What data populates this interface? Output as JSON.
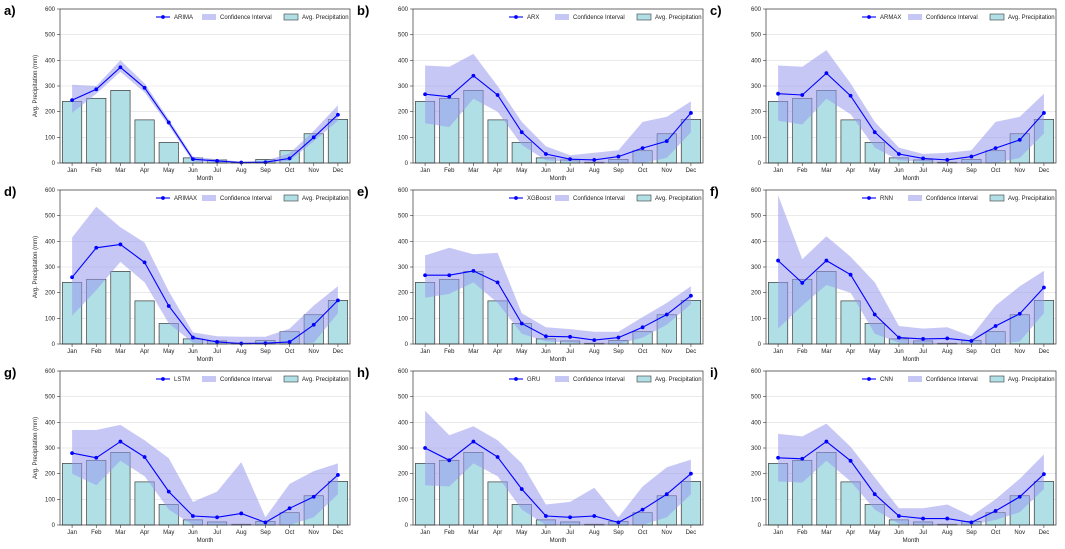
{
  "figure": {
    "bar_color": "#b0e0e6",
    "bar_edge": "#3a3a3a",
    "line_color": "#0000ff",
    "ci_color": "#9999ee"
  },
  "chart_data": [
    {
      "type": "bar+line",
      "letter": "a)",
      "model": "ARIMA",
      "categories": [
        "Jan",
        "Feb",
        "Mar",
        "Apr",
        "May",
        "Jun",
        "Jul",
        "Aug",
        "Sep",
        "Oct",
        "Nov",
        "Dec"
      ],
      "precip": [
        240,
        252,
        283,
        168,
        80,
        20,
        12,
        3,
        14,
        48,
        114,
        170
      ],
      "pred": [
        245,
        287,
        373,
        293,
        158,
        15,
        8,
        2,
        3,
        18,
        100,
        188
      ],
      "ci_low": [
        195,
        270,
        355,
        275,
        145,
        5,
        2,
        0,
        0,
        8,
        85,
        165
      ],
      "ci_high": [
        305,
        300,
        400,
        310,
        170,
        25,
        15,
        5,
        8,
        38,
        125,
        225
      ],
      "ylim": [
        0,
        600
      ],
      "yticks": [
        0,
        100,
        200,
        300,
        400,
        500,
        600
      ],
      "xlabel": "Month",
      "ylabel": "Avg. Precipitation (mm)",
      "legend": [
        "ARIMA",
        "Confidence Interval",
        "Avg. Precipitation"
      ]
    },
    {
      "type": "bar+line",
      "letter": "b)",
      "model": "ARX",
      "categories": [
        "Jan",
        "Feb",
        "Mar",
        "Apr",
        "May",
        "Jun",
        "Jul",
        "Aug",
        "Sep",
        "Oct",
        "Nov",
        "Dec"
      ],
      "precip": [
        240,
        252,
        283,
        168,
        80,
        20,
        12,
        3,
        14,
        48,
        114,
        170
      ],
      "pred": [
        268,
        258,
        340,
        265,
        120,
        35,
        15,
        12,
        25,
        58,
        85,
        195
      ],
      "ci_low": [
        155,
        140,
        250,
        200,
        70,
        10,
        5,
        0,
        0,
        0,
        20,
        120
      ],
      "ci_high": [
        380,
        375,
        425,
        300,
        160,
        65,
        30,
        40,
        50,
        160,
        180,
        240
      ],
      "ylim": [
        0,
        600
      ],
      "yticks": [
        0,
        100,
        200,
        300,
        400,
        500,
        600
      ],
      "xlabel": "Month",
      "ylabel": "",
      "legend": [
        "ARX",
        "Confidence Interval",
        "Avg. Precipitation"
      ]
    },
    {
      "type": "bar+line",
      "letter": "c)",
      "model": "ARMAX",
      "categories": [
        "Jan",
        "Feb",
        "Mar",
        "Apr",
        "May",
        "Jun",
        "Jul",
        "Aug",
        "Sep",
        "Oct",
        "Nov",
        "Dec"
      ],
      "precip": [
        240,
        252,
        283,
        168,
        80,
        20,
        12,
        3,
        14,
        48,
        114,
        170
      ],
      "pred": [
        270,
        265,
        350,
        262,
        120,
        35,
        18,
        12,
        25,
        58,
        90,
        195
      ],
      "ci_low": [
        165,
        150,
        250,
        190,
        60,
        10,
        5,
        0,
        0,
        0,
        20,
        115
      ],
      "ci_high": [
        380,
        375,
        440,
        310,
        160,
        60,
        35,
        40,
        50,
        160,
        180,
        270
      ],
      "ylim": [
        0,
        600
      ],
      "yticks": [
        0,
        100,
        200,
        300,
        400,
        500,
        600
      ],
      "xlabel": "Month",
      "ylabel": "",
      "legend": [
        "ARMAX",
        "Confidence Interval",
        "Avg. Precipitation"
      ]
    },
    {
      "type": "bar+line",
      "letter": "d)",
      "model": "ARIMAX",
      "categories": [
        "Jan",
        "Feb",
        "Mar",
        "Apr",
        "May",
        "Jun",
        "Jul",
        "Aug",
        "Sep",
        "Oct",
        "Nov",
        "Dec"
      ],
      "precip": [
        240,
        252,
        283,
        168,
        80,
        20,
        12,
        3,
        14,
        48,
        114,
        170
      ],
      "pred": [
        260,
        375,
        388,
        318,
        148,
        25,
        8,
        2,
        3,
        8,
        75,
        170
      ],
      "ci_low": [
        110,
        210,
        320,
        240,
        80,
        5,
        0,
        0,
        0,
        0,
        5,
        120
      ],
      "ci_high": [
        415,
        535,
        455,
        395,
        205,
        45,
        30,
        28,
        28,
        60,
        150,
        225
      ],
      "ylim": [
        0,
        600
      ],
      "yticks": [
        0,
        100,
        200,
        300,
        400,
        500,
        600
      ],
      "xlabel": "Month",
      "ylabel": "Avg. Precipitation (mm)",
      "legend": [
        "ARIMAX",
        "Confidence Interval",
        "Avg. Precipitation"
      ]
    },
    {
      "type": "bar+line",
      "letter": "e)",
      "model": "XGBoost",
      "categories": [
        "Jan",
        "Feb",
        "Mar",
        "Apr",
        "May",
        "Jun",
        "Jul",
        "Aug",
        "Sep",
        "Oct",
        "Nov",
        "Dec"
      ],
      "precip": [
        240,
        252,
        283,
        168,
        80,
        20,
        12,
        3,
        14,
        48,
        114,
        170
      ],
      "pred": [
        268,
        268,
        285,
        240,
        80,
        30,
        28,
        15,
        25,
        65,
        115,
        188
      ],
      "ci_low": [
        180,
        195,
        240,
        160,
        40,
        10,
        5,
        0,
        0,
        25,
        75,
        155
      ],
      "ci_high": [
        345,
        375,
        350,
        355,
        120,
        65,
        58,
        48,
        48,
        105,
        160,
        225
      ],
      "ylim": [
        0,
        600
      ],
      "yticks": [
        0,
        100,
        200,
        300,
        400,
        500,
        600
      ],
      "xlabel": "Month",
      "ylabel": "",
      "legend": [
        "XGBoost",
        "Confidence Interval",
        "Avg. Precipitation"
      ]
    },
    {
      "type": "bar+line",
      "letter": "f)",
      "model": "RNN",
      "categories": [
        "Jan",
        "Feb",
        "Mar",
        "Apr",
        "May",
        "Jun",
        "Jul",
        "Aug",
        "Sep",
        "Oct",
        "Nov",
        "Dec"
      ],
      "precip": [
        240,
        252,
        283,
        168,
        80,
        20,
        12,
        3,
        14,
        48,
        114,
        170
      ],
      "pred": [
        325,
        238,
        325,
        270,
        115,
        25,
        20,
        22,
        12,
        70,
        118,
        220
      ],
      "ci_low": [
        60,
        150,
        230,
        200,
        40,
        5,
        0,
        0,
        0,
        0,
        10,
        120
      ],
      "ci_high": [
        580,
        330,
        420,
        340,
        240,
        70,
        60,
        65,
        30,
        150,
        225,
        285
      ],
      "ylim": [
        0,
        600
      ],
      "yticks": [
        0,
        100,
        200,
        300,
        400,
        500,
        600
      ],
      "xlabel": "Month",
      "ylabel": "",
      "legend": [
        "RNN",
        "Confidence Interval",
        "Avg. Precipitation"
      ]
    },
    {
      "type": "bar+line",
      "letter": "g)",
      "model": "LSTM",
      "categories": [
        "Jan",
        "Feb",
        "Mar",
        "Apr",
        "May",
        "Jun",
        "Jul",
        "Aug",
        "Sep",
        "Oct",
        "Nov",
        "Dec"
      ],
      "precip": [
        240,
        252,
        283,
        168,
        80,
        20,
        12,
        3,
        14,
        48,
        114,
        170
      ],
      "pred": [
        280,
        262,
        325,
        265,
        130,
        35,
        30,
        45,
        10,
        65,
        110,
        195
      ],
      "ci_low": [
        200,
        155,
        250,
        190,
        60,
        0,
        0,
        0,
        0,
        0,
        30,
        120
      ],
      "ci_high": [
        370,
        370,
        390,
        330,
        260,
        90,
        130,
        245,
        30,
        160,
        210,
        240
      ],
      "ylim": [
        0,
        600
      ],
      "yticks": [
        0,
        100,
        200,
        300,
        400,
        500,
        600
      ],
      "xlabel": "Month",
      "ylabel": "Avg. Precipitation (mm)",
      "legend": [
        "LSTM",
        "Confidence Interval",
        "Avg. Precipitation"
      ]
    },
    {
      "type": "bar+line",
      "letter": "h)",
      "model": "GRU",
      "categories": [
        "Jan",
        "Feb",
        "Mar",
        "Apr",
        "May",
        "Jun",
        "Jul",
        "Aug",
        "Sep",
        "Oct",
        "Nov",
        "Dec"
      ],
      "precip": [
        240,
        252,
        283,
        168,
        80,
        20,
        12,
        3,
        14,
        48,
        114,
        170
      ],
      "pred": [
        300,
        252,
        325,
        265,
        140,
        35,
        30,
        35,
        10,
        60,
        120,
        200
      ],
      "ci_low": [
        155,
        150,
        240,
        190,
        60,
        0,
        0,
        0,
        0,
        0,
        30,
        120
      ],
      "ci_high": [
        445,
        350,
        385,
        330,
        240,
        80,
        90,
        145,
        30,
        150,
        225,
        255
      ],
      "ylim": [
        0,
        600
      ],
      "yticks": [
        0,
        100,
        200,
        300,
        400,
        500,
        600
      ],
      "xlabel": "Month",
      "ylabel": "",
      "legend": [
        "GRU",
        "Confidence Interval",
        "Avg. Precipitation"
      ]
    },
    {
      "type": "bar+line",
      "letter": "i)",
      "model": "CNN",
      "categories": [
        "Jan",
        "Feb",
        "Mar",
        "Apr",
        "May",
        "Jun",
        "Jul",
        "Aug",
        "Sep",
        "Oct",
        "Nov",
        "Dec"
      ],
      "precip": [
        240,
        252,
        283,
        168,
        80,
        20,
        12,
        3,
        14,
        48,
        114,
        170
      ],
      "pred": [
        262,
        258,
        325,
        250,
        120,
        35,
        25,
        25,
        10,
        55,
        110,
        198
      ],
      "ci_low": [
        170,
        165,
        250,
        170,
        60,
        5,
        0,
        0,
        0,
        20,
        50,
        140
      ],
      "ci_high": [
        355,
        345,
        395,
        305,
        185,
        65,
        65,
        80,
        35,
        100,
        180,
        275
      ],
      "ylim": [
        0,
        600
      ],
      "yticks": [
        0,
        100,
        200,
        300,
        400,
        500,
        600
      ],
      "xlabel": "Month",
      "ylabel": "",
      "legend": [
        "CNN",
        "Confidence Interval",
        "Avg. Precipitation"
      ]
    }
  ]
}
